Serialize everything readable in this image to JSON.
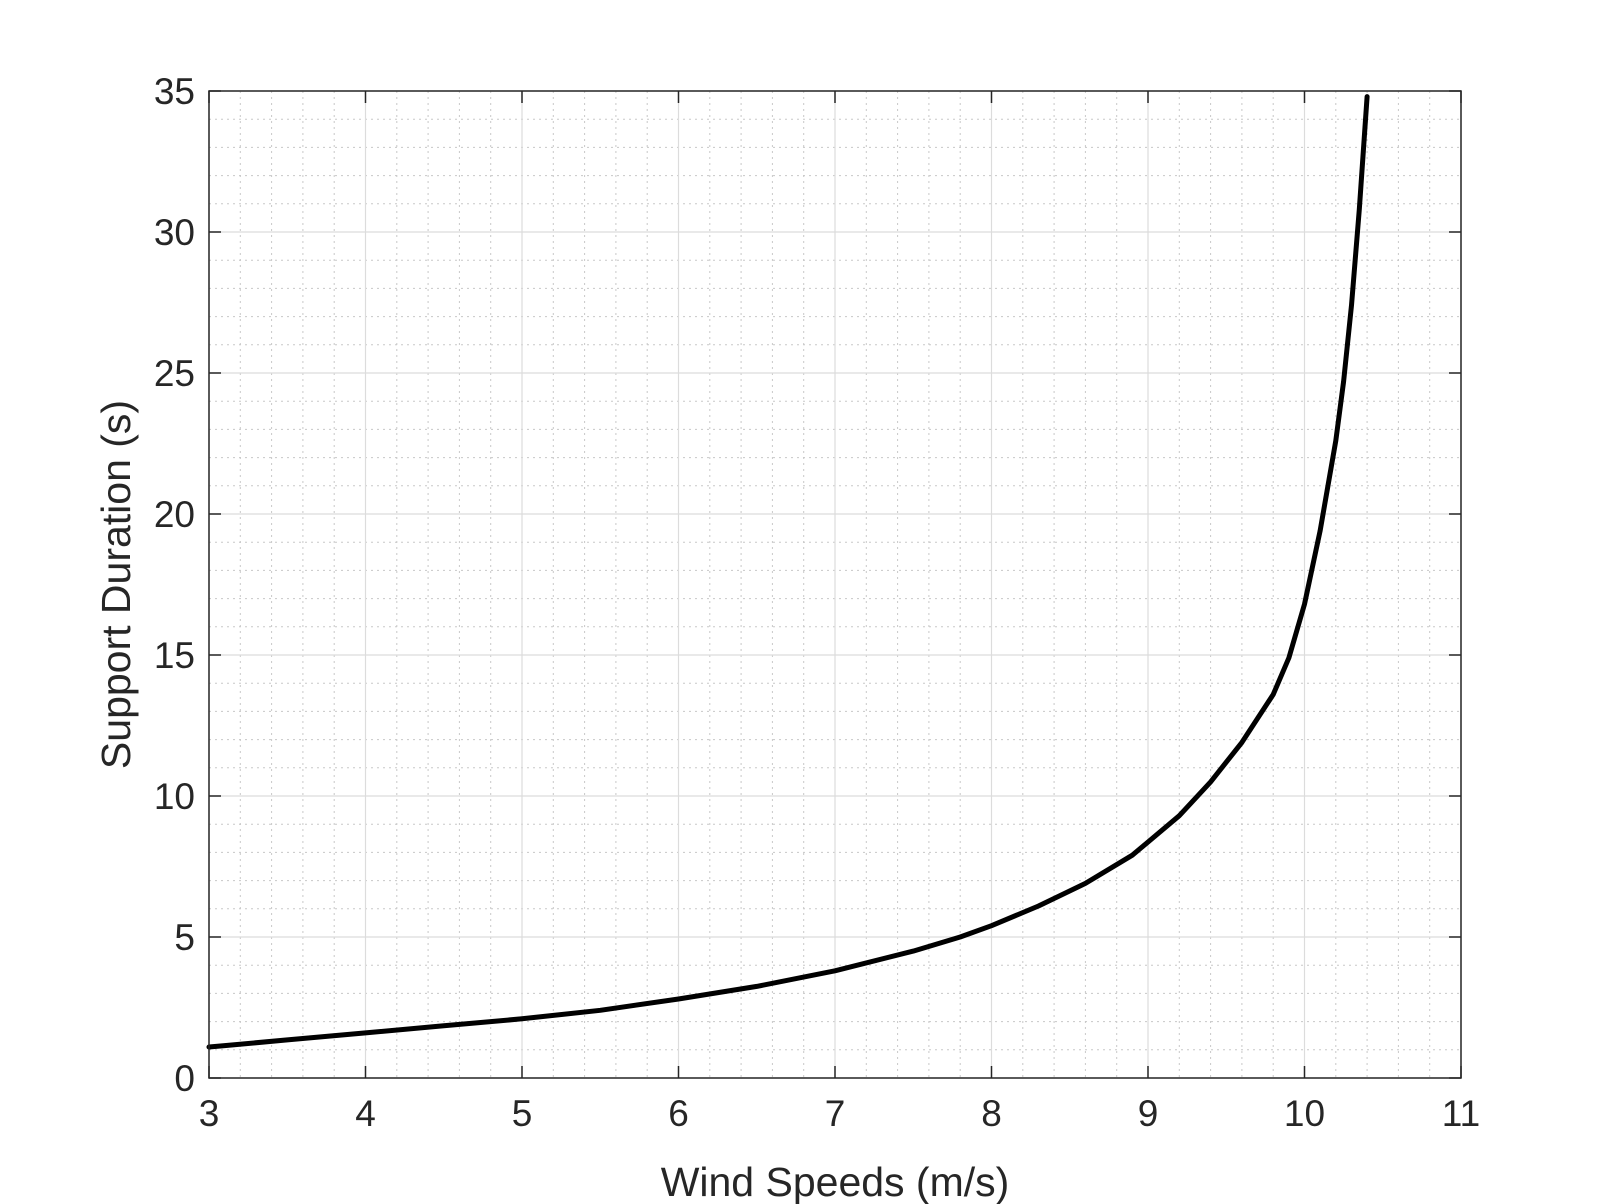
{
  "chart_data": {
    "type": "line",
    "title": "",
    "xlabel": "Wind Speeds (m/s)",
    "ylabel": "Support Duration (s)",
    "xlim": [
      3,
      11
    ],
    "ylim": [
      0,
      35
    ],
    "xticks": [
      3,
      4,
      5,
      6,
      7,
      8,
      9,
      10,
      11
    ],
    "yticks": [
      0,
      5,
      10,
      15,
      20,
      25,
      30,
      35
    ],
    "xtick_labels": [
      "3",
      "4",
      "5",
      "6",
      "7",
      "8",
      "9",
      "10",
      "11"
    ],
    "ytick_labels": [
      "0",
      "5",
      "10",
      "15",
      "20",
      "25",
      "30",
      "35"
    ],
    "grid": true,
    "minor_grid": true,
    "series": [
      {
        "color": "#000000",
        "x": [
          3.0,
          3.1,
          3.5,
          4.0,
          4.5,
          5.0,
          5.5,
          6.0,
          6.5,
          7.0,
          7.5,
          7.8,
          8.0,
          8.3,
          8.6,
          8.9,
          9.2,
          9.4,
          9.6,
          9.8,
          9.9,
          10.0,
          10.1,
          10.2,
          10.25,
          10.3,
          10.35,
          10.4
        ],
        "y": [
          1.1,
          1.15,
          1.35,
          1.6,
          1.85,
          2.1,
          2.4,
          2.8,
          3.25,
          3.8,
          4.5,
          5.0,
          5.4,
          6.1,
          6.9,
          7.9,
          9.3,
          10.5,
          11.9,
          13.6,
          14.9,
          16.8,
          19.4,
          22.6,
          24.7,
          27.4,
          30.8,
          34.8
        ]
      }
    ]
  }
}
